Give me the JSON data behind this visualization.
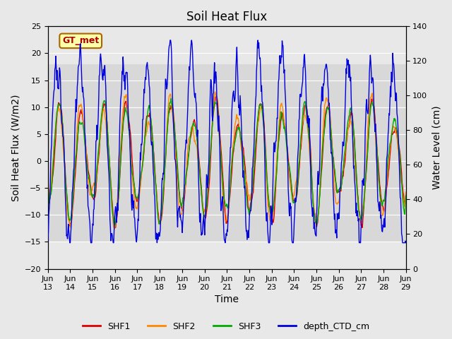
{
  "title": "Soil Heat Flux",
  "xlabel": "Time",
  "ylabel_left": "Soil Heat Flux (W/m2)",
  "ylabel_right": "Water Level (cm)",
  "ylim_left": [
    -20,
    25
  ],
  "ylim_right": [
    0,
    140
  ],
  "xlim_start": 0,
  "xlim_end": 16,
  "xtick_positions": [
    0,
    1,
    2,
    3,
    4,
    5,
    6,
    7,
    8,
    9,
    10,
    11,
    12,
    13,
    14,
    15,
    16
  ],
  "xtick_labels": [
    "Jun\n13",
    "Jun\n14",
    "Jun\n15",
    "Jun\n16",
    "Jun\n17",
    "Jun\n18",
    "Jun\n19",
    "Jun\n20",
    "Jun\n21",
    "Jun\n22",
    "Jun\n23",
    "Jun\n24",
    "Jun\n25",
    "Jun\n26",
    "Jun\n27",
    "Jun\n28",
    "Jun\n29"
  ],
  "shaded_ymin": -15,
  "shaded_ymax": 18,
  "shaded_color": "#d8d8d8",
  "gt_met_label": "GT_met",
  "gt_met_color": "#aa0000",
  "gt_met_bg": "#ffffaa",
  "gt_met_edge": "#aa6600",
  "legend_labels": [
    "SHF1",
    "SHF2",
    "SHF3",
    "depth_CTD_cm"
  ],
  "line_colors": [
    "#dd0000",
    "#ff8800",
    "#00aa00",
    "#0000dd"
  ],
  "fig_facecolor": "#e8e8e8",
  "ax_facecolor": "#e8e8e8",
  "title_fontsize": 12,
  "axis_fontsize": 10,
  "tick_fontsize": 8,
  "legend_fontsize": 9
}
